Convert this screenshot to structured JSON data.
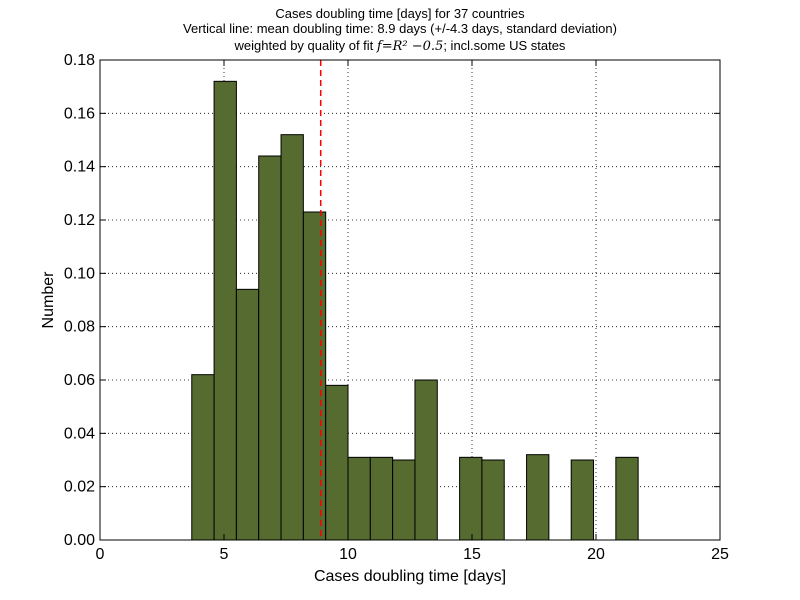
{
  "chart_data": {
    "type": "bar",
    "title": "Cases doubling time [days] for 37 countries",
    "subtitle": "Vertical line: mean doubling time: 8.9 days (+/-4.3 days, standard deviation)",
    "subtitle2_prefix": "weighted by quality of fit",
    "subtitle2_formula": "f=R² −0.5",
    "subtitle2_suffix": "; incl.some US states",
    "xlabel": "Cases doubling time [days]",
    "ylabel": "Number",
    "xlim": [
      0,
      25
    ],
    "ylim": [
      0,
      0.18
    ],
    "xticks": [
      0,
      5,
      10,
      15,
      20,
      25
    ],
    "xtick_labels": [
      "0",
      "5",
      "10",
      "15",
      "20",
      "25"
    ],
    "yticks": [
      0,
      0.02,
      0.04,
      0.06,
      0.08,
      0.1,
      0.12,
      0.14,
      0.16,
      0.18
    ],
    "ytick_labels": [
      "0.00",
      "0.02",
      "0.04",
      "0.06",
      "0.08",
      "0.10",
      "0.12",
      "0.14",
      "0.16",
      "0.18"
    ],
    "grid": true,
    "bar_color": "#556b2f",
    "mean_line": {
      "x": 8.9,
      "color": "#ff0000"
    },
    "bars": [
      {
        "left": 3.7,
        "right": 4.6,
        "value": 0.062
      },
      {
        "left": 4.6,
        "right": 5.5,
        "value": 0.172
      },
      {
        "left": 5.5,
        "right": 6.4,
        "value": 0.094
      },
      {
        "left": 6.4,
        "right": 7.3,
        "value": 0.144
      },
      {
        "left": 7.3,
        "right": 8.2,
        "value": 0.152
      },
      {
        "left": 8.2,
        "right": 9.1,
        "value": 0.123
      },
      {
        "left": 9.1,
        "right": 10.0,
        "value": 0.058
      },
      {
        "left": 10.0,
        "right": 10.9,
        "value": 0.031
      },
      {
        "left": 10.9,
        "right": 11.8,
        "value": 0.031
      },
      {
        "left": 11.8,
        "right": 12.7,
        "value": 0.03
      },
      {
        "left": 12.7,
        "right": 13.6,
        "value": 0.06
      },
      {
        "left": 14.5,
        "right": 15.4,
        "value": 0.031
      },
      {
        "left": 15.4,
        "right": 16.3,
        "value": 0.03
      },
      {
        "left": 17.2,
        "right": 18.1,
        "value": 0.032
      },
      {
        "left": 19.0,
        "right": 19.9,
        "value": 0.03
      },
      {
        "left": 20.8,
        "right": 21.7,
        "value": 0.031
      }
    ]
  }
}
